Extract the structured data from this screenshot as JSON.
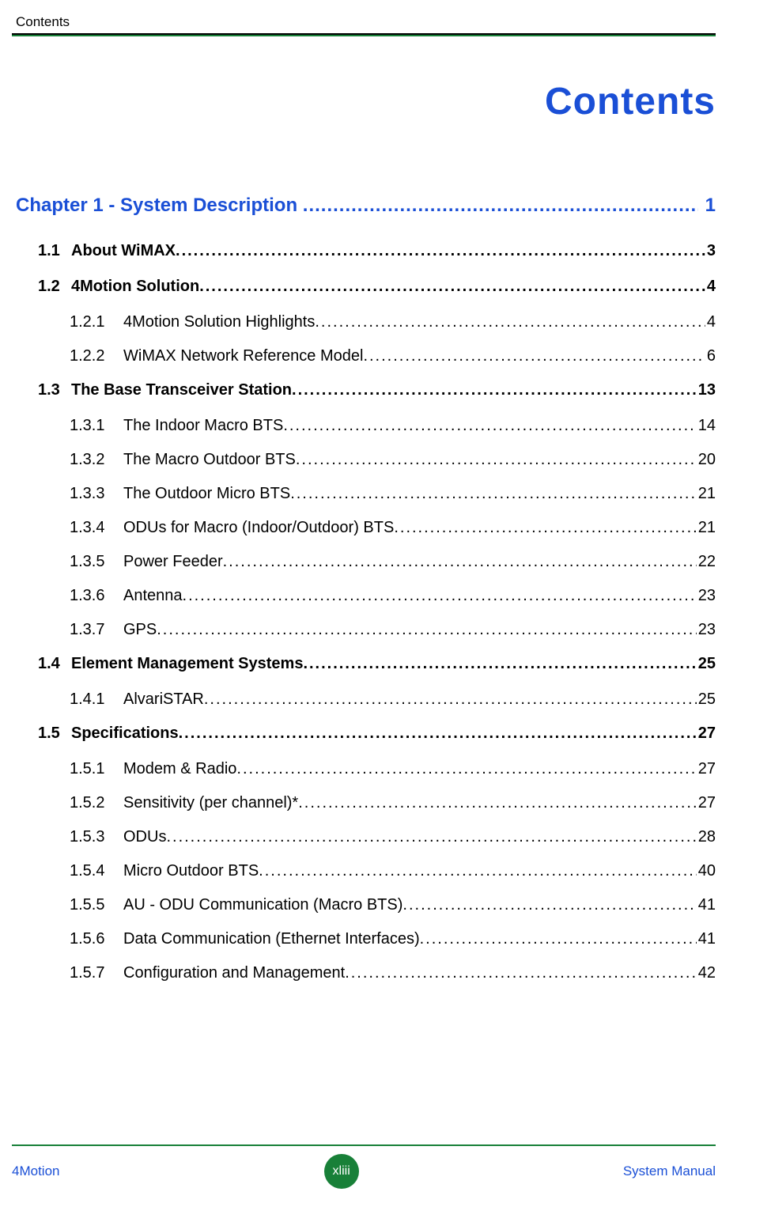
{
  "running_head": "Contents",
  "title": "Contents",
  "colors": {
    "link_blue": "#1a4fd6",
    "rule_green": "#188038",
    "text_black": "#000000",
    "badge_bg": "#188038",
    "badge_text": "#ffffff",
    "background": "#ffffff"
  },
  "typography": {
    "body_family": "Arial",
    "title_size_pt": 36,
    "running_head_size_pt": 13,
    "chapter_size_pt": 18,
    "section_size_pt": 15,
    "sub_size_pt": 15,
    "footer_size_pt": 13
  },
  "chapter": {
    "label": "Chapter 1 - System Description",
    "page": "1"
  },
  "sections": [
    {
      "num": "1.1",
      "title": "About WiMAX",
      "page": "3",
      "subs": []
    },
    {
      "num": "1.2",
      "title": "4Motion Solution",
      "page": "4",
      "subs": [
        {
          "num": "1.2.1",
          "title": "4Motion Solution Highlights",
          "page": "4"
        },
        {
          "num": "1.2.2",
          "title": "WiMAX Network Reference Model",
          "page": "6"
        }
      ]
    },
    {
      "num": "1.3",
      "title": "The Base Transceiver Station",
      "page": "13",
      "subs": [
        {
          "num": "1.3.1",
          "title": "The Indoor Macro BTS",
          "page": "14"
        },
        {
          "num": "1.3.2",
          "title": "The Macro Outdoor BTS",
          "page": "20"
        },
        {
          "num": "1.3.3",
          "title": "The Outdoor Micro BTS",
          "page": "21"
        },
        {
          "num": "1.3.4",
          "title": "ODUs for Macro (Indoor/Outdoor) BTS",
          "page": "21"
        },
        {
          "num": "1.3.5",
          "title": "Power Feeder",
          "page": "22"
        },
        {
          "num": "1.3.6",
          "title": "Antenna",
          "page": "23"
        },
        {
          "num": "1.3.7",
          "title": "GPS",
          "page": "23"
        }
      ]
    },
    {
      "num": "1.4",
      "title": "Element Management Systems",
      "page": "25",
      "subs": [
        {
          "num": "1.4.1",
          "title": "AlvariSTAR",
          "page": "25"
        }
      ]
    },
    {
      "num": "1.5",
      "title": "Specifications",
      "page": "27",
      "subs": [
        {
          "num": "1.5.1",
          "title": "Modem & Radio",
          "page": "27"
        },
        {
          "num": "1.5.2",
          "title": "Sensitivity (per channel)*",
          "page": "27"
        },
        {
          "num": "1.5.3",
          "title": "ODUs",
          "page": "28"
        },
        {
          "num": "1.5.4",
          "title": "Micro Outdoor BTS",
          "page": "40"
        },
        {
          "num": "1.5.5",
          "title": "AU - ODU Communication (Macro BTS)",
          "page": "41"
        },
        {
          "num": "1.5.6",
          "title": "Data Communication (Ethernet Interfaces)",
          "page": "41"
        },
        {
          "num": "1.5.7",
          "title": "Configuration and Management",
          "page": "42"
        }
      ]
    }
  ],
  "footer": {
    "left": "4Motion",
    "center": "xliii",
    "right": "System Manual"
  }
}
